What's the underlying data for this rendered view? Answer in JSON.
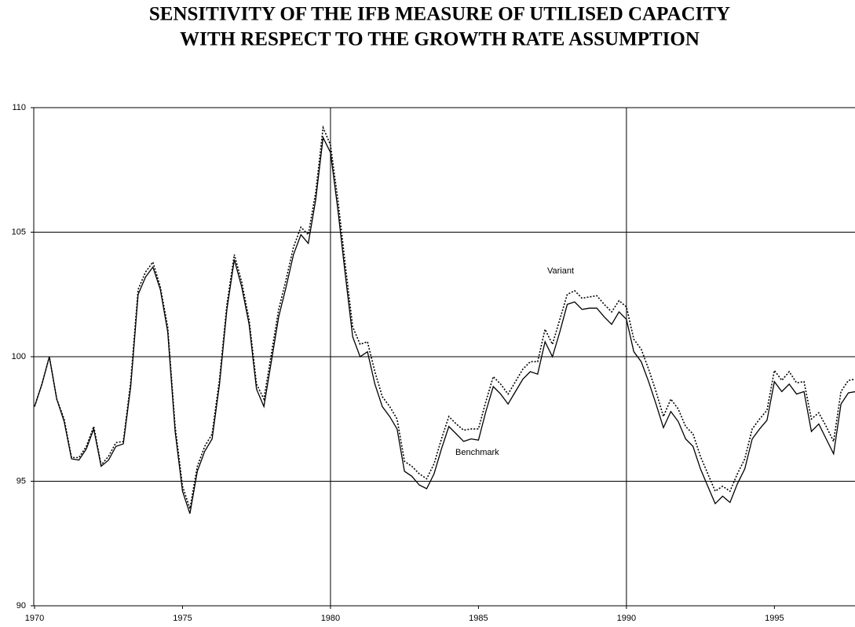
{
  "chart_data": {
    "type": "line",
    "title": [
      "SENSITIVITY OF THE IFB MEASURE OF UTILISED CAPACITY",
      "WITH RESPECT TO THE GROWTH RATE ASSUMPTION"
    ],
    "x": [
      1970,
      1970.25,
      1970.5,
      1970.75,
      1971,
      1971.25,
      1971.5,
      1971.75,
      1972,
      1972.25,
      1972.5,
      1972.75,
      1973,
      1973.25,
      1973.5,
      1973.75,
      1974,
      1974.25,
      1974.5,
      1974.75,
      1975,
      1975.25,
      1975.5,
      1975.75,
      1976,
      1976.25,
      1976.5,
      1976.75,
      1977,
      1977.25,
      1977.5,
      1977.75,
      1978,
      1978.25,
      1978.5,
      1978.75,
      1979,
      1979.25,
      1979.5,
      1979.75,
      1980,
      1980.25,
      1980.5,
      1980.75,
      1981,
      1981.25,
      1981.5,
      1981.75,
      1982,
      1982.25,
      1982.5,
      1982.75,
      1983,
      1983.25,
      1983.5,
      1983.75,
      1984,
      1984.25,
      1984.5,
      1984.75,
      1985,
      1985.25,
      1985.5,
      1985.75,
      1986,
      1986.25,
      1986.5,
      1986.75,
      1987,
      1987.25,
      1987.5,
      1987.75,
      1988,
      1988.25,
      1988.5,
      1988.75,
      1989,
      1989.25,
      1989.5,
      1989.75,
      1990,
      1990.25,
      1990.5,
      1990.75,
      1991,
      1991.25,
      1991.5,
      1991.75,
      1992,
      1992.25,
      1992.5,
      1992.75,
      1993,
      1993.25,
      1993.5,
      1993.75,
      1994,
      1994.25,
      1994.5,
      1994.75,
      1995,
      1995.25,
      1995.5,
      1995.75,
      1996,
      1996.25,
      1996.5,
      1996.75,
      1997,
      1997.25,
      1997.5,
      1997.75
    ],
    "series": [
      {
        "name": "Benchmark",
        "color": "#000000",
        "dash": false,
        "values": [
          98.0,
          98.9,
          100.0,
          98.3,
          97.4,
          95.9,
          95.85,
          96.3,
          97.1,
          95.6,
          95.85,
          96.4,
          96.5,
          98.8,
          102.5,
          103.2,
          103.6,
          102.7,
          101.0,
          97.0,
          94.6,
          93.7,
          95.4,
          96.2,
          96.7,
          98.9,
          101.9,
          103.9,
          102.8,
          101.3,
          98.7,
          98.0,
          99.8,
          101.6,
          102.8,
          104.1,
          104.9,
          104.55,
          106.3,
          108.8,
          108.2,
          105.9,
          103.3,
          100.8,
          100.0,
          100.2,
          98.9,
          98.0,
          97.6,
          97.1,
          95.4,
          95.2,
          94.85,
          94.7,
          95.3,
          96.3,
          97.2,
          96.9,
          96.6,
          96.7,
          96.65,
          97.8,
          98.8,
          98.5,
          98.1,
          98.6,
          99.1,
          99.4,
          99.3,
          100.6,
          100.0,
          101.0,
          102.1,
          102.2,
          101.9,
          101.95,
          101.95,
          101.6,
          101.3,
          101.8,
          101.5,
          100.2,
          99.8,
          99.0,
          98.1,
          97.15,
          97.8,
          97.4,
          96.7,
          96.4,
          95.5,
          94.8,
          94.1,
          94.4,
          94.15,
          94.9,
          95.5,
          96.7,
          97.1,
          97.45,
          99.0,
          98.6,
          98.9,
          98.5,
          98.6,
          97.0,
          97.3,
          96.7,
          96.1,
          98.1,
          98.55,
          98.6
        ]
      },
      {
        "name": "Variant",
        "color": "#000000",
        "dash": true,
        "values": [
          98.0,
          98.9,
          100.0,
          98.3,
          97.5,
          95.95,
          95.95,
          96.4,
          97.2,
          95.65,
          96.0,
          96.55,
          96.6,
          99.0,
          102.7,
          103.4,
          103.8,
          102.8,
          101.2,
          97.2,
          94.8,
          93.9,
          95.6,
          96.4,
          96.9,
          99.1,
          102.1,
          104.1,
          103.0,
          101.5,
          98.9,
          98.3,
          100.1,
          101.9,
          103.1,
          104.4,
          105.2,
          104.9,
          106.6,
          109.2,
          108.5,
          106.3,
          103.7,
          101.2,
          100.5,
          100.6,
          99.4,
          98.4,
          98.0,
          97.5,
          95.8,
          95.6,
          95.3,
          95.1,
          95.7,
          96.7,
          97.6,
          97.3,
          97.05,
          97.1,
          97.1,
          98.2,
          99.2,
          98.9,
          98.5,
          99.0,
          99.5,
          99.8,
          99.8,
          101.1,
          100.5,
          101.5,
          102.5,
          102.65,
          102.35,
          102.4,
          102.45,
          102.1,
          101.8,
          102.25,
          102.0,
          100.7,
          100.3,
          99.5,
          98.6,
          97.6,
          98.3,
          97.9,
          97.2,
          96.9,
          96.0,
          95.3,
          94.6,
          94.8,
          94.6,
          95.3,
          95.9,
          97.1,
          97.5,
          97.85,
          99.45,
          99.05,
          99.4,
          98.95,
          99.0,
          97.5,
          97.75,
          97.2,
          96.6,
          98.6,
          99.05,
          99.1
        ]
      }
    ],
    "xlim": [
      1970,
      1997.75
    ],
    "xticks": [
      1970,
      1975,
      1980,
      1985,
      1990,
      1995
    ],
    "ylim": [
      90,
      110
    ],
    "yticks": [
      90,
      95,
      100,
      105,
      110
    ],
    "grid": true
  }
}
